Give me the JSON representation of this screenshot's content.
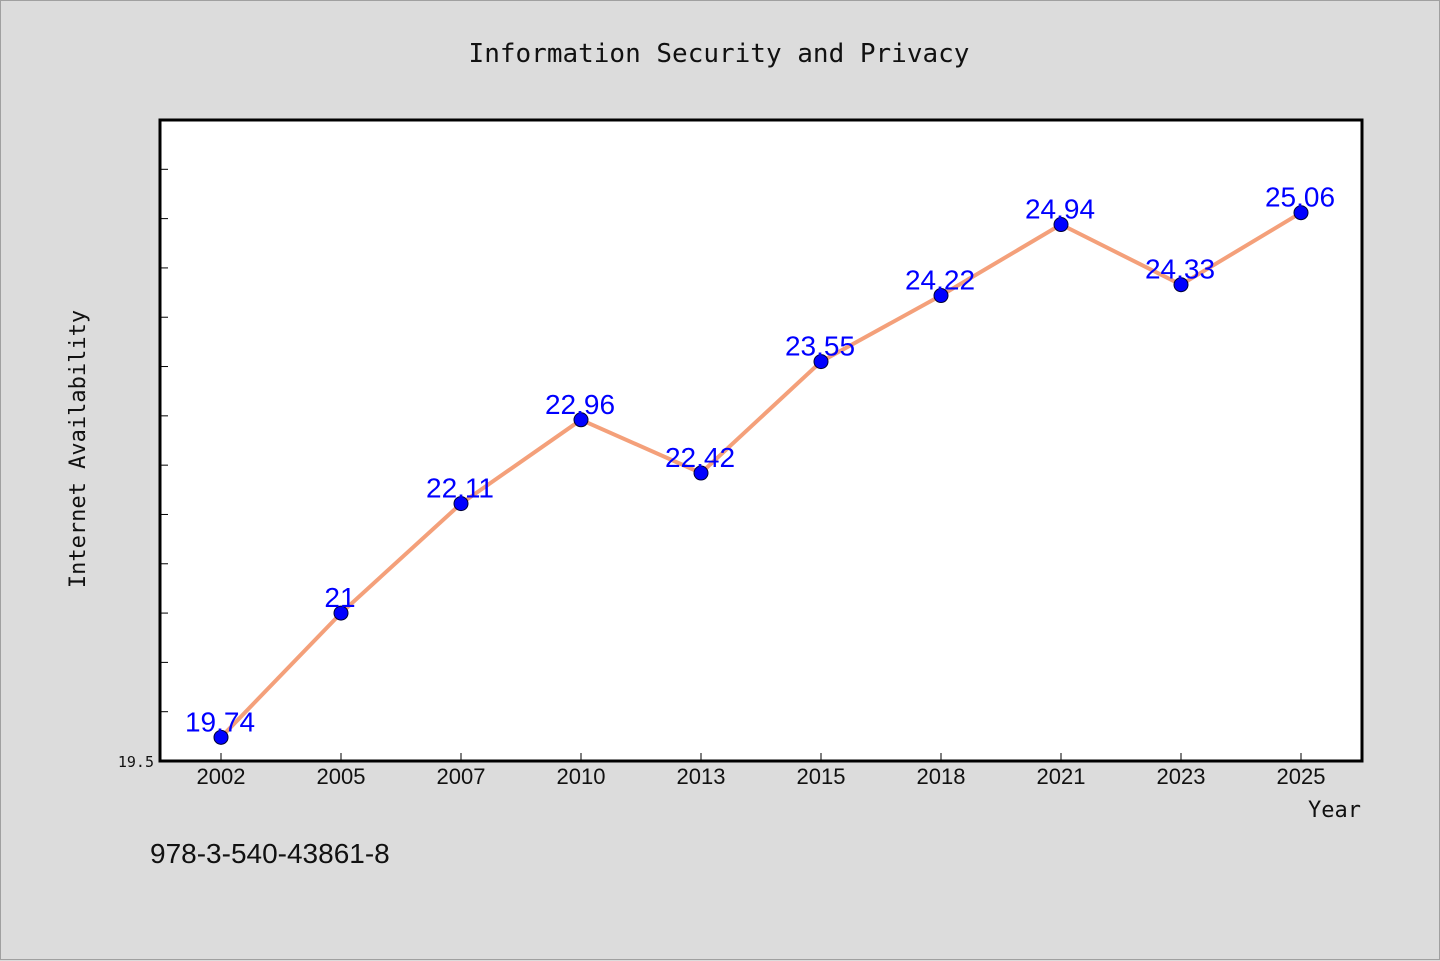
{
  "chart_data": {
    "type": "line",
    "title": "Information Security and Privacy",
    "xlabel": "Year",
    "ylabel": "Internet Availability",
    "categories": [
      "2002",
      "2005",
      "2007",
      "2010",
      "2013",
      "2015",
      "2018",
      "2021",
      "2023",
      "2025"
    ],
    "series": [
      {
        "values": [
          19.74,
          21,
          22.11,
          22.96,
          22.42,
          23.55,
          24.22,
          24.94,
          24.33,
          25.06
        ],
        "line_color": "#f4a07a",
        "marker_color": "#0000ff"
      }
    ],
    "ylim": [
      19.5,
      26.0
    ],
    "y_tick_labels": [
      "19.5"
    ],
    "grid": false,
    "legend": "none"
  },
  "footer_text": "978-3-540-43861-8"
}
